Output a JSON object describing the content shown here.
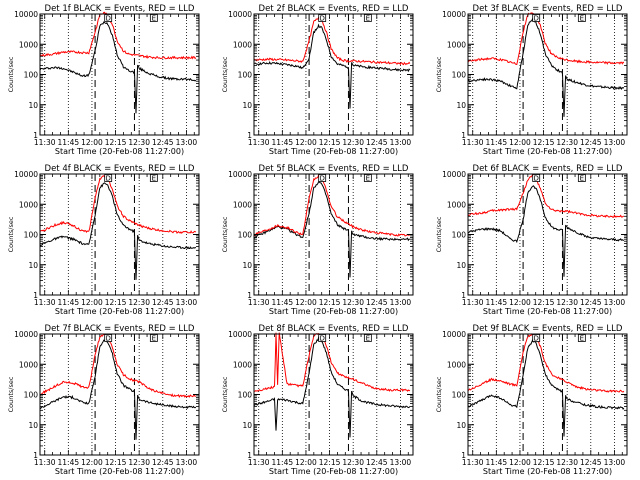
{
  "figure": {
    "shared": {
      "xlabel": "Start Time (20-Feb-08 11:27:00)",
      "ylabel": "Counts/sec",
      "x_ticks": [
        "11:30",
        "11:45",
        "12:00",
        "12:15",
        "12:30",
        "12:45",
        "13:00"
      ],
      "y_ticks": [
        "1",
        "10",
        "100",
        "1000",
        "10000"
      ],
      "ylim": [
        1,
        10000
      ],
      "y_scale": "log",
      "xlim": [
        "11:27",
        "13:08"
      ],
      "marker_D": "D",
      "marker_E": "E",
      "colors": {
        "events": "#000000",
        "lld": "#ff0000"
      }
    }
  },
  "chart_data": [
    {
      "type": "line",
      "title": "Det 1f BLACK = Events, RED = LLD",
      "series": [
        {
          "x": [
            "11:27",
            "11:36",
            "11:42",
            "11:48",
            "11:54",
            "11:58",
            "12:02",
            "12:05",
            "12:08",
            "12:10",
            "12:13",
            "12:16",
            "12:20",
            "12:23",
            "12:26",
            "12:27",
            "12:28",
            "12:29",
            "12:30",
            "12:36",
            "12:42",
            "12:48",
            "12:54",
            "13:00",
            "13:06"
          ],
          "values": [
            150,
            170,
            160,
            120,
            90,
            95,
            600,
            4000,
            5500,
            4800,
            2000,
            450,
            180,
            140,
            120,
            120,
            5,
            200,
            160,
            110,
            85,
            75,
            70,
            70,
            65
          ]
        },
        {
          "x": [
            "11:27",
            "11:36",
            "11:42",
            "11:48",
            "11:54",
            "11:58",
            "12:02",
            "12:05",
            "12:08",
            "12:10",
            "12:13",
            "12:16",
            "12:20",
            "12:23",
            "12:26",
            "12:30",
            "12:36",
            "12:42",
            "12:48",
            "12:54",
            "13:00",
            "13:06"
          ],
          "values": [
            420,
            480,
            550,
            560,
            530,
            520,
            2500,
            9500,
            11000,
            9000,
            4500,
            1300,
            600,
            480,
            450,
            420,
            380,
            360,
            360,
            360,
            360,
            360
          ]
        }
      ]
    },
    {
      "type": "line",
      "title": "Det 2f BLACK = Events, RED = LLD",
      "series": [
        {
          "x": [
            "11:27",
            "11:36",
            "11:42",
            "11:48",
            "11:54",
            "11:58",
            "12:02",
            "12:05",
            "12:08",
            "12:10",
            "12:13",
            "12:16",
            "12:20",
            "12:23",
            "12:26",
            "12:27",
            "12:28",
            "12:29",
            "12:30",
            "12:36",
            "12:42",
            "12:48",
            "12:54",
            "13:00",
            "13:06"
          ],
          "values": [
            220,
            240,
            230,
            210,
            190,
            160,
            350,
            2500,
            4000,
            3500,
            1400,
            400,
            220,
            200,
            180,
            170,
            8,
            250,
            200,
            180,
            170,
            160,
            150,
            140,
            140
          ]
        },
        {
          "x": [
            "11:27",
            "11:36",
            "11:42",
            "11:48",
            "11:54",
            "11:58",
            "12:02",
            "12:05",
            "12:08",
            "12:10",
            "12:13",
            "12:16",
            "12:20",
            "12:23",
            "12:26",
            "12:30",
            "12:36",
            "12:42",
            "12:48",
            "12:54",
            "13:00",
            "13:06"
          ],
          "values": [
            300,
            320,
            310,
            300,
            280,
            270,
            1300,
            5500,
            7500,
            6500,
            2500,
            700,
            350,
            300,
            280,
            280,
            270,
            260,
            250,
            240,
            230,
            230
          ]
        }
      ]
    },
    {
      "type": "line",
      "title": "Det 3f BLACK = Events, RED = LLD",
      "series": [
        {
          "x": [
            "11:27",
            "11:36",
            "11:42",
            "11:48",
            "11:54",
            "11:58",
            "12:02",
            "12:05",
            "12:08",
            "12:10",
            "12:13",
            "12:16",
            "12:20",
            "12:23",
            "12:26",
            "12:27",
            "12:28",
            "12:29",
            "12:30",
            "12:36",
            "12:42",
            "12:48",
            "12:54",
            "13:00",
            "13:06"
          ],
          "values": [
            60,
            70,
            68,
            60,
            42,
            35,
            500,
            4500,
            6500,
            5500,
            2200,
            500,
            200,
            150,
            120,
            110,
            4,
            100,
            70,
            55,
            45,
            40,
            38,
            36,
            35
          ]
        },
        {
          "x": [
            "11:27",
            "11:36",
            "11:42",
            "11:48",
            "11:54",
            "11:58",
            "12:02",
            "12:05",
            "12:08",
            "12:10",
            "12:13",
            "12:16",
            "12:20",
            "12:23",
            "12:26",
            "12:30",
            "12:36",
            "12:42",
            "12:48",
            "12:54",
            "13:00",
            "13:06"
          ],
          "values": [
            270,
            320,
            340,
            310,
            250,
            220,
            2500,
            9500,
            11000,
            9000,
            4200,
            1100,
            480,
            380,
            330,
            300,
            270,
            260,
            250,
            245,
            240,
            240
          ]
        }
      ]
    },
    {
      "type": "line",
      "title": "Det 4f BLACK = Events, RED = LLD",
      "series": [
        {
          "x": [
            "11:27",
            "11:36",
            "11:42",
            "11:48",
            "11:54",
            "11:58",
            "12:02",
            "12:05",
            "12:08",
            "12:10",
            "12:13",
            "12:16",
            "12:20",
            "12:23",
            "12:26",
            "12:27",
            "12:28",
            "12:29",
            "12:30",
            "12:36",
            "12:42",
            "12:48",
            "12:54",
            "13:00",
            "13:06"
          ],
          "values": [
            45,
            70,
            85,
            70,
            50,
            45,
            450,
            3500,
            5000,
            4300,
            1800,
            450,
            200,
            160,
            130,
            120,
            3,
            90,
            65,
            50,
            45,
            40,
            38,
            37,
            36
          ]
        },
        {
          "x": [
            "11:27",
            "11:36",
            "11:42",
            "11:48",
            "11:54",
            "11:58",
            "12:02",
            "12:05",
            "12:08",
            "12:10",
            "12:13",
            "12:16",
            "12:20",
            "12:23",
            "12:26",
            "12:30",
            "12:36",
            "12:42",
            "12:48",
            "12:54",
            "13:00",
            "13:06"
          ],
          "values": [
            120,
            200,
            250,
            200,
            130,
            120,
            1600,
            7000,
            8500,
            7200,
            3200,
            900,
            400,
            300,
            250,
            200,
            160,
            140,
            130,
            120,
            120,
            120
          ]
        }
      ]
    },
    {
      "type": "line",
      "title": "Det 5f BLACK = Events, RED = LLD",
      "series": [
        {
          "x": [
            "11:27",
            "11:36",
            "11:42",
            "11:48",
            "11:54",
            "11:58",
            "12:02",
            "12:05",
            "12:08",
            "12:10",
            "12:13",
            "12:16",
            "12:20",
            "12:23",
            "12:26",
            "12:27",
            "12:28",
            "12:29",
            "12:30",
            "12:36",
            "12:42",
            "12:48",
            "12:54",
            "13:00",
            "13:06"
          ],
          "values": [
            80,
            130,
            180,
            150,
            100,
            80,
            500,
            3500,
            5500,
            4700,
            1900,
            480,
            210,
            170,
            140,
            130,
            4,
            130,
            100,
            85,
            75,
            72,
            70,
            70,
            70
          ]
        },
        {
          "x": [
            "11:27",
            "11:36",
            "11:42",
            "11:48",
            "11:54",
            "11:58",
            "12:02",
            "12:05",
            "12:08",
            "12:10",
            "12:13",
            "12:16",
            "12:20",
            "12:23",
            "12:26",
            "12:30",
            "12:36",
            "12:42",
            "12:48",
            "12:54",
            "13:00",
            "13:06"
          ],
          "values": [
            100,
            150,
            200,
            170,
            120,
            100,
            1500,
            6500,
            8500,
            7000,
            3000,
            850,
            380,
            300,
            240,
            180,
            140,
            120,
            110,
            100,
            95,
            95
          ]
        }
      ]
    },
    {
      "type": "line",
      "title": "Det 6f BLACK = Events, RED = LLD",
      "series": [
        {
          "x": [
            "11:27",
            "11:36",
            "11:42",
            "11:48",
            "11:54",
            "11:58",
            "12:02",
            "12:05",
            "12:08",
            "12:10",
            "12:13",
            "12:16",
            "12:20",
            "12:23",
            "12:26",
            "12:27",
            "12:28",
            "12:29",
            "12:30",
            "12:36",
            "12:42",
            "12:48",
            "12:54",
            "13:00",
            "13:06"
          ],
          "values": [
            120,
            150,
            155,
            130,
            70,
            60,
            300,
            2500,
            4000,
            3500,
            1400,
            380,
            180,
            150,
            140,
            140,
            4,
            200,
            170,
            120,
            85,
            75,
            70,
            68,
            65
          ]
        },
        {
          "x": [
            "11:27",
            "11:36",
            "11:42",
            "11:48",
            "11:54",
            "11:58",
            "12:02",
            "12:05",
            "12:08",
            "12:10",
            "12:13",
            "12:16",
            "12:20",
            "12:23",
            "12:26",
            "12:30",
            "12:36",
            "12:42",
            "12:48",
            "12:54",
            "13:00",
            "13:06"
          ],
          "values": [
            450,
            520,
            600,
            650,
            680,
            700,
            2300,
            6500,
            9000,
            7500,
            3200,
            1100,
            650,
            600,
            600,
            580,
            500,
            450,
            420,
            400,
            400,
            400
          ]
        }
      ]
    },
    {
      "type": "line",
      "title": "Det 7f BLACK = Events, RED = LLD",
      "series": [
        {
          "x": [
            "11:27",
            "11:36",
            "11:42",
            "11:48",
            "11:54",
            "11:58",
            "12:02",
            "12:05",
            "12:08",
            "12:10",
            "12:13",
            "12:16",
            "12:20",
            "12:23",
            "12:26",
            "12:27",
            "12:28",
            "12:29",
            "12:30",
            "12:36",
            "12:42",
            "12:48",
            "12:54",
            "13:00",
            "13:06"
          ],
          "values": [
            35,
            60,
            85,
            80,
            55,
            50,
            400,
            3800,
            6500,
            5500,
            2200,
            500,
            200,
            160,
            130,
            120,
            3,
            100,
            70,
            55,
            48,
            42,
            40,
            38,
            38
          ]
        },
        {
          "x": [
            "11:27",
            "11:36",
            "11:42",
            "11:48",
            "11:54",
            "11:58",
            "12:02",
            "12:05",
            "12:08",
            "12:10",
            "12:13",
            "12:16",
            "12:20",
            "12:23",
            "12:26",
            "12:30",
            "12:36",
            "12:42",
            "12:48",
            "12:54",
            "13:00",
            "13:06"
          ],
          "values": [
            100,
            180,
            260,
            240,
            180,
            170,
            2000,
            8000,
            9500,
            8000,
            3500,
            1000,
            450,
            350,
            300,
            260,
            160,
            120,
            100,
            90,
            88,
            90
          ]
        }
      ]
    },
    {
      "type": "line",
      "title": "Det 8f BLACK = Events, RED = LLD",
      "series": [
        {
          "x": [
            "11:27",
            "11:36",
            "11:40",
            "11:41",
            "11:42",
            "11:43",
            "11:48",
            "11:54",
            "11:58",
            "12:02",
            "12:05",
            "12:08",
            "12:10",
            "12:13",
            "12:16",
            "12:20",
            "12:23",
            "12:26",
            "12:27",
            "12:28",
            "12:29",
            "12:30",
            "12:36",
            "12:42",
            "12:48",
            "12:54",
            "13:00",
            "13:06"
          ],
          "values": [
            45,
            60,
            70,
            6,
            65,
            70,
            65,
            55,
            50,
            500,
            4500,
            7000,
            6000,
            2400,
            550,
            220,
            170,
            140,
            130,
            4,
            120,
            90,
            60,
            50,
            45,
            42,
            40,
            40
          ]
        },
        {
          "x": [
            "11:27",
            "11:36",
            "11:40",
            "11:41",
            "11:42",
            "11:43",
            "11:48",
            "11:54",
            "11:58",
            "12:02",
            "12:05",
            "12:08",
            "12:10",
            "12:13",
            "12:16",
            "12:20",
            "12:23",
            "12:26",
            "12:30",
            "12:36",
            "12:42",
            "12:48",
            "12:54",
            "13:00",
            "13:06"
          ],
          "values": [
            130,
            160,
            180,
            11000,
            200,
            11000,
            220,
            200,
            190,
            2000,
            8500,
            10500,
            9000,
            4000,
            1200,
            520,
            420,
            360,
            320,
            230,
            170,
            150,
            140,
            140,
            140
          ]
        }
      ]
    },
    {
      "type": "line",
      "title": "Det 9f BLACK = Events, RED = LLD",
      "series": [
        {
          "x": [
            "11:27",
            "11:36",
            "11:42",
            "11:48",
            "11:54",
            "11:58",
            "12:02",
            "12:05",
            "12:08",
            "12:10",
            "12:13",
            "12:16",
            "12:20",
            "12:23",
            "12:26",
            "12:27",
            "12:28",
            "12:29",
            "12:30",
            "12:36",
            "12:42",
            "12:48",
            "12:54",
            "13:00",
            "13:06"
          ],
          "values": [
            40,
            65,
            95,
            75,
            45,
            40,
            400,
            3500,
            6000,
            5000,
            2000,
            480,
            200,
            160,
            130,
            120,
            4,
            90,
            70,
            55,
            45,
            40,
            38,
            36,
            36
          ]
        },
        {
          "x": [
            "11:27",
            "11:36",
            "11:42",
            "11:48",
            "11:54",
            "11:58",
            "12:02",
            "12:05",
            "12:08",
            "12:10",
            "12:13",
            "12:16",
            "12:20",
            "12:23",
            "12:26",
            "12:30",
            "12:36",
            "12:42",
            "12:48",
            "12:54",
            "13:00",
            "13:06"
          ],
          "values": [
            140,
            220,
            320,
            280,
            220,
            200,
            2500,
            8500,
            10000,
            8500,
            3800,
            1100,
            480,
            380,
            320,
            260,
            180,
            150,
            140,
            130,
            130,
            130
          ]
        }
      ]
    }
  ]
}
